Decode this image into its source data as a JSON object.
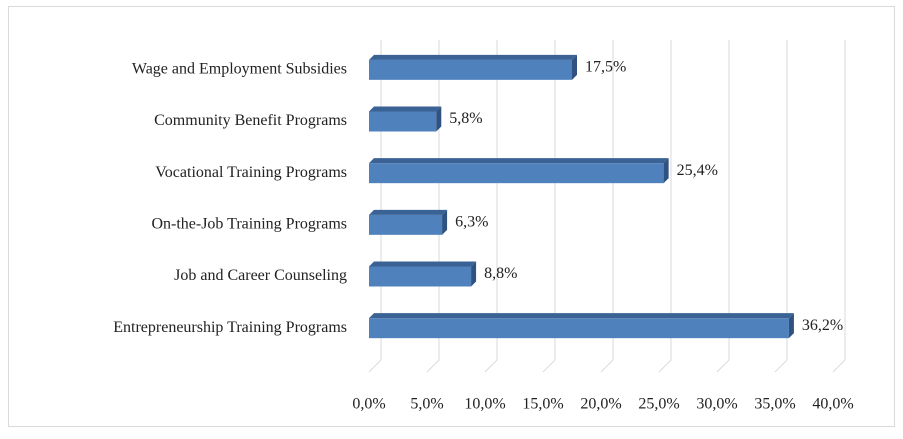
{
  "chart_data": {
    "type": "bar",
    "categories": [
      "Wage and Employment Subsidies",
      "Community Benefit Programs",
      "Vocational Training Programs",
      "On-the-Job Training Programs",
      "Job and Career Counseling",
      "Entrepreneurship Training Programs"
    ],
    "values": [
      17.5,
      5.8,
      25.4,
      6.3,
      8.8,
      36.2
    ],
    "value_labels": [
      "17,5%",
      "5,8%",
      "25,4%",
      "6,3%",
      "8,8%",
      "36,2%"
    ],
    "color": "#4f81bd",
    "xlim": [
      0,
      40
    ],
    "xticks": [
      {
        "value": 0,
        "label": "0,0%"
      },
      {
        "value": 5,
        "label": "5,0%"
      },
      {
        "value": 10,
        "label": "10,0%"
      },
      {
        "value": 15,
        "label": "15,0%"
      },
      {
        "value": 20,
        "label": "20,0%"
      },
      {
        "value": 25,
        "label": "25,0%"
      },
      {
        "value": 30,
        "label": "30,0%"
      },
      {
        "value": 35,
        "label": "35,0%"
      },
      {
        "value": 40,
        "label": "40,0%"
      }
    ],
    "grid": true
  }
}
